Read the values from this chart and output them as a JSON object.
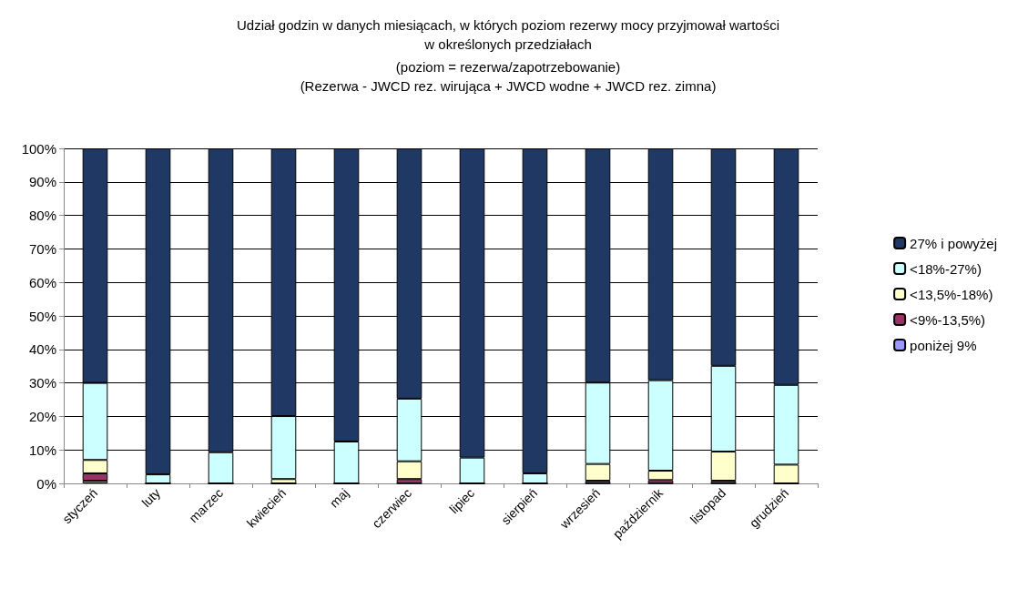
{
  "chart_data": {
    "type": "bar",
    "stacked": true,
    "title": "Udział godzin w danych miesiącach, w których poziom rezerwy mocy przyjmował wartości\nw określonych przedziałach",
    "subtitle": "(poziom = rezerwa/zapotrzebowanie)\n(Rezerwa - JWCD rez. wirująca + JWCD wodne + JWCD rez. zimna)",
    "categories": [
      "styczeń",
      "luty",
      "marzec",
      "kwiecień",
      "maj",
      "czerwiec",
      "lipiec",
      "sierpień",
      "wrzesień",
      "październik",
      "listopad",
      "grudzień"
    ],
    "series": [
      {
        "name": "poniżej 9%",
        "color": "#9999ff",
        "values": [
          0.8,
          0,
          0,
          0,
          0,
          0,
          0,
          0,
          0,
          0,
          0,
          0
        ]
      },
      {
        "name": "<9%-13,5%)",
        "color": "#993366",
        "values": [
          2.2,
          0,
          0,
          0,
          0,
          1.3,
          0,
          0,
          0.8,
          1,
          0.8,
          0
        ]
      },
      {
        "name": "<13,5%-18%)",
        "color": "#ffffcc",
        "values": [
          4,
          0,
          0,
          1.3,
          0,
          5.3,
          0,
          0,
          5,
          2.8,
          8.7,
          5.6
        ]
      },
      {
        "name": "<18%-27%)",
        "color": "#ccffff",
        "values": [
          23,
          2.7,
          9.3,
          18.8,
          12.5,
          18.7,
          7.7,
          3,
          24.3,
          27,
          25.6,
          23.8
        ]
      },
      {
        "name": "27% i powyżej",
        "color": "#1f3864",
        "values": [
          70,
          97.3,
          90.7,
          79.9,
          87.5,
          74.7,
          92.3,
          97,
          69.9,
          69.2,
          64.9,
          70.6
        ]
      }
    ],
    "ylim": [
      0,
      100
    ],
    "yticks": [
      {
        "value": 0,
        "label": "0%"
      },
      {
        "value": 10,
        "label": "10%"
      },
      {
        "value": 20,
        "label": "20%"
      },
      {
        "value": 30,
        "label": "30%"
      },
      {
        "value": 40,
        "label": "40%"
      },
      {
        "value": 50,
        "label": "50%"
      },
      {
        "value": 60,
        "label": "60%"
      },
      {
        "value": 70,
        "label": "70%"
      },
      {
        "value": 80,
        "label": "80%"
      },
      {
        "value": 90,
        "label": "90%"
      },
      {
        "value": 100,
        "label": "100%"
      }
    ],
    "grid": "y",
    "legend": "right"
  }
}
